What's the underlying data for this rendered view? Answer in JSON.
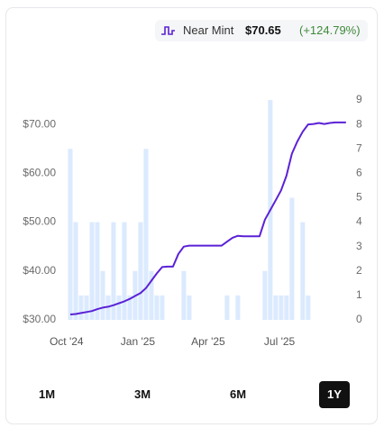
{
  "chart_data": {
    "type": "line",
    "legend_price": "$70.65",
    "legend_change": "(+124.79%)",
    "series": [
      {
        "name": "Near Mint",
        "color": "#5b21d6",
        "axis": "y",
        "values": [
          31.1,
          31.2,
          31.4,
          31.6,
          31.8,
          32.2,
          32.5,
          32.7,
          33.0,
          33.4,
          33.8,
          34.3,
          34.9,
          35.5,
          36.5,
          38.0,
          39.5,
          40.8,
          40.9,
          40.9,
          43.5,
          45.0,
          45.2,
          45.2,
          45.2,
          45.2,
          45.2,
          45.2,
          45.2,
          46.0,
          46.8,
          47.2,
          47.1,
          47.1,
          47.1,
          47.1,
          50.5,
          52.5,
          54.5,
          56.5,
          59.5,
          64.0,
          66.5,
          68.5,
          70.0,
          70.1,
          70.3,
          70.1,
          70.3,
          70.4,
          70.4,
          70.4
        ]
      }
    ],
    "volume": {
      "color": "#dbeafe",
      "axis": "y2",
      "values": [
        7,
        4,
        1,
        1,
        4,
        4,
        2,
        1,
        4,
        1,
        4,
        1,
        2,
        4,
        7,
        2,
        1,
        1,
        0,
        0,
        0,
        2,
        1,
        0,
        0,
        0,
        0,
        0,
        0,
        1,
        0,
        1,
        0,
        0,
        0,
        0,
        2,
        9,
        1,
        1,
        1,
        5,
        0,
        4,
        1,
        0,
        0,
        0,
        0,
        0,
        0,
        0
      ]
    },
    "x": [
      0,
      1,
      2,
      3,
      4,
      5,
      6,
      7,
      8,
      9,
      10,
      11,
      12,
      13,
      14,
      15,
      16,
      17,
      18,
      19,
      20,
      21,
      22,
      23,
      24,
      25,
      26,
      27,
      28,
      29,
      30,
      31,
      32,
      33,
      34,
      35,
      36,
      37,
      38,
      39,
      40,
      41,
      42,
      43,
      44,
      45,
      46,
      47,
      48,
      49,
      50,
      51
    ],
    "xlim": [
      -1,
      51.2
    ],
    "xticks": [
      {
        "value": -0.7,
        "label": "Oct '24"
      },
      {
        "value": 12.5,
        "label": "Jan '25"
      },
      {
        "value": 25.5,
        "label": "Apr '25"
      },
      {
        "value": 38.7,
        "label": "Jul '25"
      }
    ],
    "ylim": [
      30,
      75
    ],
    "yticks": [
      {
        "value": 30,
        "label": "$30.00"
      },
      {
        "value": 40,
        "label": "$40.00"
      },
      {
        "value": 50,
        "label": "$50.00"
      },
      {
        "value": 60,
        "label": "$60.00"
      },
      {
        "value": 70,
        "label": "$70.00"
      }
    ],
    "y2lim": [
      0,
      9
    ],
    "y2ticks": [
      0,
      1,
      2,
      3,
      4,
      5,
      6,
      7,
      8,
      9
    ],
    "range_options": [
      "1M",
      "3M",
      "6M",
      "1Y"
    ],
    "selected_range": "1Y"
  }
}
